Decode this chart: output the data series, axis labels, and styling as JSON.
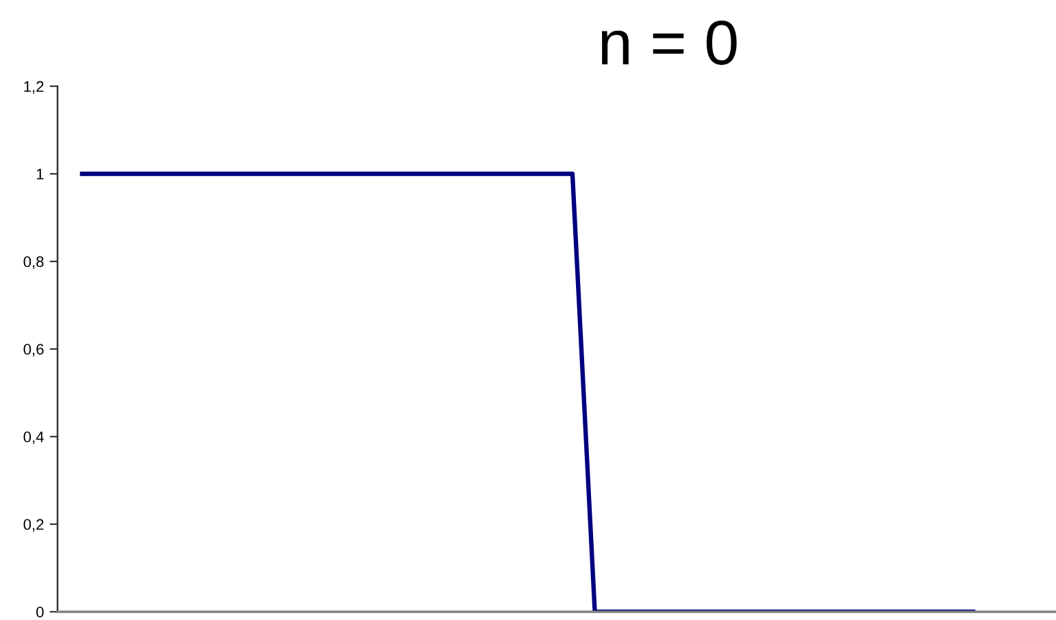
{
  "chart_data": {
    "type": "line",
    "title": "n = 0",
    "categories": [
      null,
      null,
      null,
      null,
      null,
      null,
      null,
      null,
      null,
      null,
      null,
      null,
      null,
      null,
      null,
      null,
      null,
      null,
      null,
      null,
      null,
      null,
      null,
      null,
      null,
      null,
      null,
      null,
      null,
      null,
      null,
      null,
      null,
      null,
      null,
      null,
      null,
      null,
      null,
      null,
      null
    ],
    "series": [
      {
        "color": "#000080",
        "values": [
          1,
          1,
          1,
          1,
          1,
          1,
          1,
          1,
          1,
          1,
          1,
          1,
          1,
          1,
          1,
          1,
          1,
          1,
          1,
          1,
          1,
          1,
          1,
          0,
          0,
          0,
          0,
          0,
          0,
          0,
          0,
          0,
          0,
          0,
          0,
          0,
          0,
          0,
          0,
          0,
          0
        ]
      }
    ],
    "ylim": [
      0,
      1.2
    ],
    "yticks": [
      0,
      {
        "value": 0.2,
        "label": "0,2"
      },
      {
        "value": 0.4,
        "label": "0,4"
      },
      {
        "value": 0.6,
        "label": "0,6"
      },
      {
        "value": 0.8,
        "label": "0,8"
      },
      1,
      {
        "value": 1.2,
        "label": "1,2"
      }
    ],
    "tick_labels": "y"
  }
}
